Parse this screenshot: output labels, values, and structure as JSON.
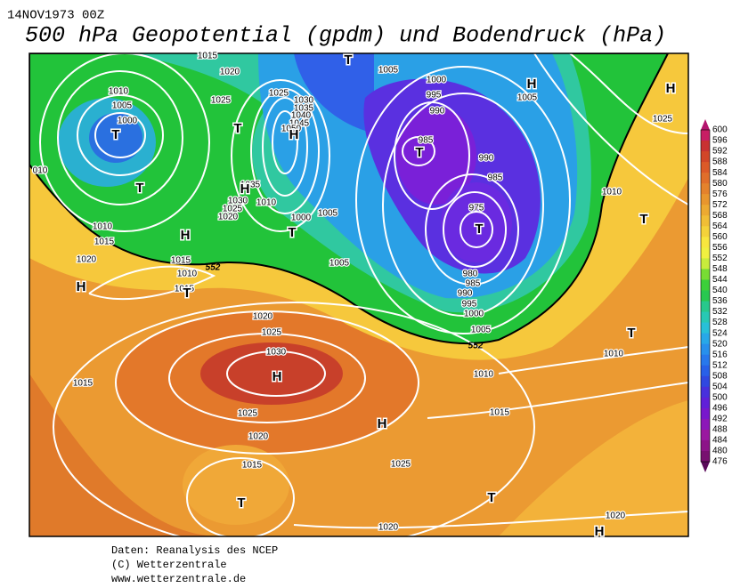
{
  "header": {
    "date": "14NOV1973 00Z",
    "title": "500 hPa Geopotential (gpdm) und Bodendruck (hPa)"
  },
  "colorbar": {
    "labels": [
      600,
      596,
      592,
      588,
      584,
      580,
      576,
      572,
      568,
      564,
      560,
      556,
      552,
      548,
      544,
      540,
      536,
      532,
      528,
      524,
      520,
      516,
      512,
      508,
      504,
      500,
      496,
      492,
      488,
      484,
      480,
      476
    ]
  },
  "map": {
    "isobar_labels": [
      "1015",
      "1020",
      "1005",
      "1000",
      "995",
      "990",
      "1005",
      "1025",
      "1010",
      "1005",
      "1000",
      "1025",
      "1025",
      "1030",
      "1035",
      "1040",
      "1045",
      "1050",
      "985",
      "990",
      "985",
      "975",
      "1035",
      "1030",
      "1025",
      "1020",
      "1010",
      "1000",
      "1005",
      "1010",
      "1010",
      "1015",
      "1020",
      "1015",
      "1010",
      "1015",
      "1005",
      "980",
      "985",
      "990",
      "995",
      "1000",
      "1005",
      "1020",
      "1025",
      "1030",
      "1015",
      "1025",
      "1020",
      "1015",
      "1010",
      "1015",
      "1025",
      "1010",
      "1020",
      "1020",
      "010"
    ],
    "contour_labels": [
      "552",
      "552"
    ],
    "centers": [
      "T",
      "T",
      "T",
      "H",
      "H",
      "T",
      "T",
      "H",
      "T",
      "H",
      "T",
      "T",
      "H",
      "H",
      "T",
      "T",
      "H",
      "H",
      "T",
      "T",
      "H"
    ]
  },
  "footer": {
    "lines": [
      "Daten: Reanalysis des NCEP",
      "(C) Wetterzentrale",
      "www.wetterzentrale.de"
    ]
  }
}
